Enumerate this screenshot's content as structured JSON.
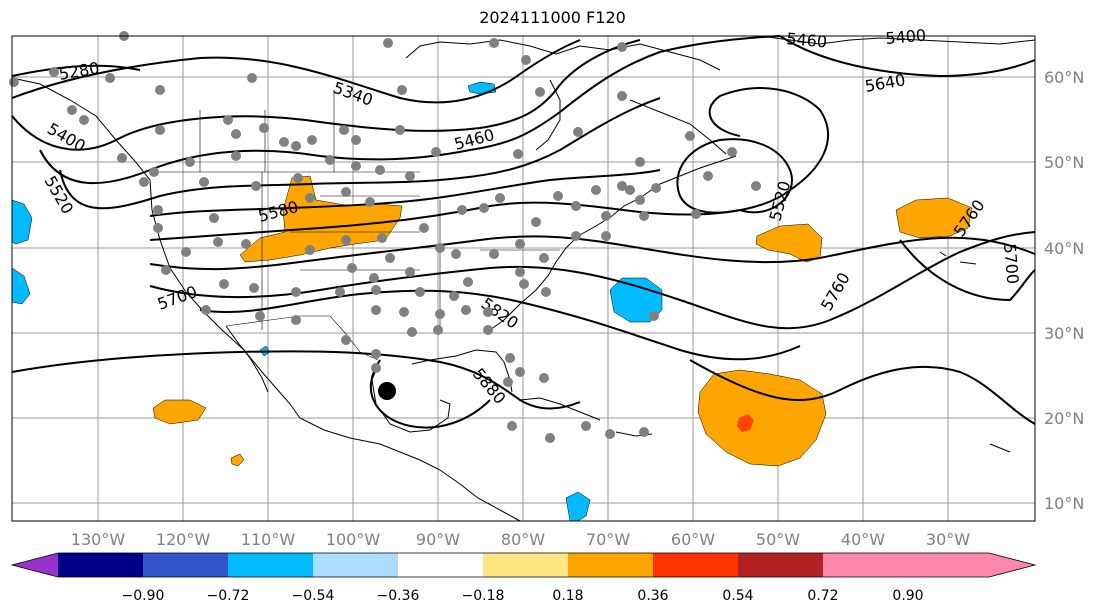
{
  "title": "2024111000 F120",
  "lat_labels": [
    "60°N",
    "50°N",
    "40°N",
    "30°N",
    "20°N",
    "10°N"
  ],
  "lon_labels": [
    "130°W",
    "120°W",
    "110°W",
    "100°W",
    "90°W",
    "80°W",
    "70°W",
    "60°W",
    "50°W",
    "40°W",
    "30°W"
  ],
  "contour_labels": [
    "5280",
    "5340",
    "5400",
    "5460",
    "5520",
    "5580",
    "5640",
    "5700",
    "5760",
    "5820",
    "5880",
    "5460",
    "5400",
    "5520",
    "5760",
    "5700"
  ],
  "colorbar": {
    "ticks": [
      "−0.90",
      "−0.72",
      "−0.54",
      "−0.36",
      "−0.18",
      "0.18",
      "0.36",
      "0.54",
      "0.72",
      "0.90"
    ],
    "colors": [
      "#9933cc",
      "#000088",
      "#3355cc",
      "#00bbff",
      "#aaddff",
      "#ffffff",
      "#ffe680",
      "#ffa500",
      "#ff3300",
      "#b22222",
      "#ff88aa"
    ]
  },
  "storm_marker": "black-dot"
}
